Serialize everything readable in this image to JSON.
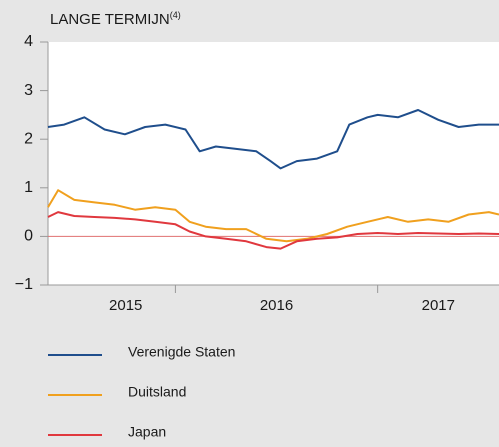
{
  "chart_data": {
    "type": "line",
    "title": "LANGE TERMIJN",
    "title_note": "(4)",
    "year_labels": [
      "2015",
      "2016",
      "2017"
    ],
    "year_boundaries": [
      2016,
      2017
    ],
    "xlim": [
      2015.37,
      2017.6
    ],
    "ylim": [
      -1,
      4
    ],
    "yticks": [
      {
        "value": -1,
        "label": "−1"
      },
      0,
      1,
      2,
      3,
      4
    ],
    "zero_line_color": "#e07070",
    "series": [
      {
        "name": "Verenigde Staten",
        "color": "#1f4e8c",
        "x": [
          2015.37,
          2015.45,
          2015.55,
          2015.65,
          2015.75,
          2015.85,
          2015.95,
          2016.05,
          2016.12,
          2016.2,
          2016.3,
          2016.4,
          2016.47,
          2016.52,
          2016.6,
          2016.7,
          2016.8,
          2016.86,
          2016.95,
          2017.0,
          2017.1,
          2017.2,
          2017.3,
          2017.4,
          2017.5,
          2017.6
        ],
        "values": [
          2.25,
          2.3,
          2.45,
          2.2,
          2.1,
          2.25,
          2.3,
          2.2,
          1.75,
          1.85,
          1.8,
          1.75,
          1.55,
          1.4,
          1.55,
          1.6,
          1.75,
          2.3,
          2.45,
          2.5,
          2.45,
          2.6,
          2.4,
          2.25,
          2.3,
          2.3
        ]
      },
      {
        "name": "Duitsland",
        "color": "#f0a01e",
        "x": [
          2015.37,
          2015.42,
          2015.5,
          2015.6,
          2015.7,
          2015.8,
          2015.9,
          2016.0,
          2016.07,
          2016.15,
          2016.25,
          2016.35,
          2016.45,
          2016.55,
          2016.65,
          2016.75,
          2016.85,
          2016.95,
          2017.05,
          2017.15,
          2017.25,
          2017.35,
          2017.45,
          2017.55,
          2017.6
        ],
        "values": [
          0.6,
          0.95,
          0.75,
          0.7,
          0.65,
          0.55,
          0.6,
          0.55,
          0.3,
          0.2,
          0.15,
          0.15,
          -0.05,
          -0.1,
          -0.05,
          0.05,
          0.2,
          0.3,
          0.4,
          0.3,
          0.35,
          0.3,
          0.45,
          0.5,
          0.45
        ]
      },
      {
        "name": "Japan",
        "color": "#e0383e",
        "x": [
          2015.37,
          2015.42,
          2015.5,
          2015.6,
          2015.7,
          2015.8,
          2015.9,
          2016.0,
          2016.07,
          2016.15,
          2016.25,
          2016.35,
          2016.45,
          2016.52,
          2016.6,
          2016.7,
          2016.8,
          2016.9,
          2017.0,
          2017.1,
          2017.2,
          2017.3,
          2017.4,
          2017.5,
          2017.6
        ],
        "values": [
          0.4,
          0.5,
          0.42,
          0.4,
          0.38,
          0.35,
          0.3,
          0.25,
          0.1,
          0.0,
          -0.05,
          -0.1,
          -0.22,
          -0.25,
          -0.1,
          -0.05,
          -0.02,
          0.05,
          0.07,
          0.05,
          0.07,
          0.06,
          0.05,
          0.06,
          0.05
        ]
      }
    ]
  }
}
